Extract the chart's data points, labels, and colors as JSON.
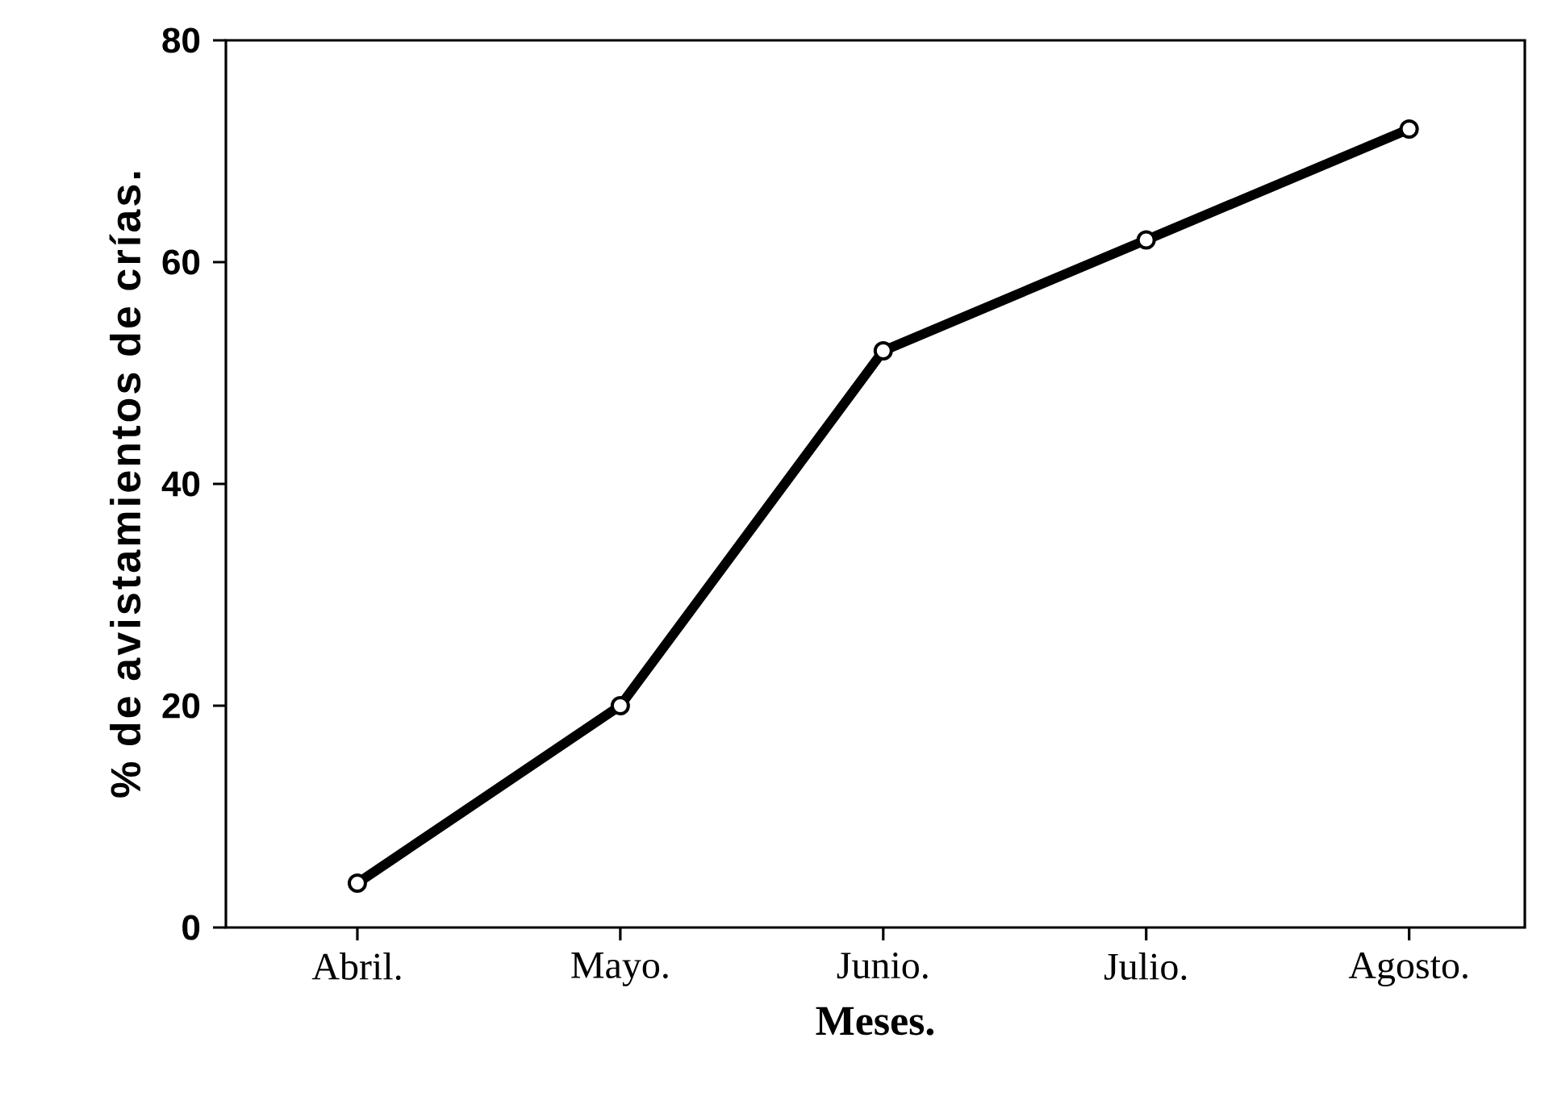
{
  "chart_data": {
    "type": "line",
    "xlabel": "Meses.",
    "ylabel": "% de avistamientos de crías.",
    "categories": [
      "Abril.",
      "Mayo.",
      "Junio.",
      "Julio.",
      "Agosto."
    ],
    "series": [
      {
        "color": "#000000",
        "values": [
          4,
          20,
          52,
          62,
          72
        ]
      }
    ],
    "ylim": [
      0,
      80
    ],
    "yticks": [
      0,
      20,
      40,
      60,
      80
    ],
    "marker": "circle",
    "line_style": "solid"
  }
}
